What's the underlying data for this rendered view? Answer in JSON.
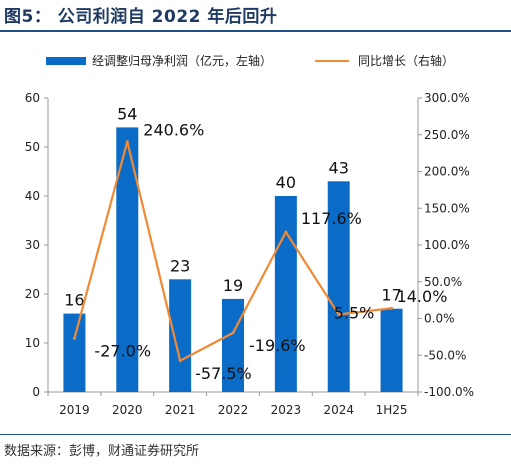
{
  "figure": {
    "title": "图5： 公司利润自 2022 年后回升",
    "source": "数据来源：彭博，财通证券研究所"
  },
  "colors": {
    "bar": "#0b6cc8",
    "line": "#f08a35",
    "rule": "#1f4e8c"
  },
  "chart_data": {
    "type": "bar+line",
    "categories": [
      "2019",
      "2020",
      "2021",
      "2022",
      "2023",
      "2024",
      "1H25"
    ],
    "series": [
      {
        "name": "经调整归母净利润（亿元，左轴）",
        "type": "bar",
        "axis": "left",
        "values": [
          16,
          54,
          23,
          19,
          40,
          43,
          17
        ],
        "labels": [
          "16",
          "54",
          "23",
          "19",
          "40",
          "43",
          "17"
        ]
      },
      {
        "name": "同比增长（右轴）",
        "type": "line",
        "axis": "right",
        "values": [
          -27.0,
          240.6,
          -57.5,
          -19.6,
          117.6,
          5.5,
          14.0
        ],
        "labels": [
          "-27.0%",
          "240.6%",
          "-57.5%",
          "-19.6%",
          "117.6%",
          "5.5%",
          "14.0%"
        ]
      }
    ],
    "y_left": {
      "range": [
        0,
        60
      ],
      "ticks": [
        0,
        10,
        20,
        30,
        40,
        50,
        60
      ]
    },
    "y_right": {
      "range": [
        -100,
        300
      ],
      "ticks": [
        "-100.0%",
        "-50.0%",
        "0.0%",
        "50.0%",
        "100.0%",
        "150.0%",
        "200.0%",
        "250.0%",
        "300.0%"
      ]
    },
    "legend_position": "top",
    "grid": false
  }
}
